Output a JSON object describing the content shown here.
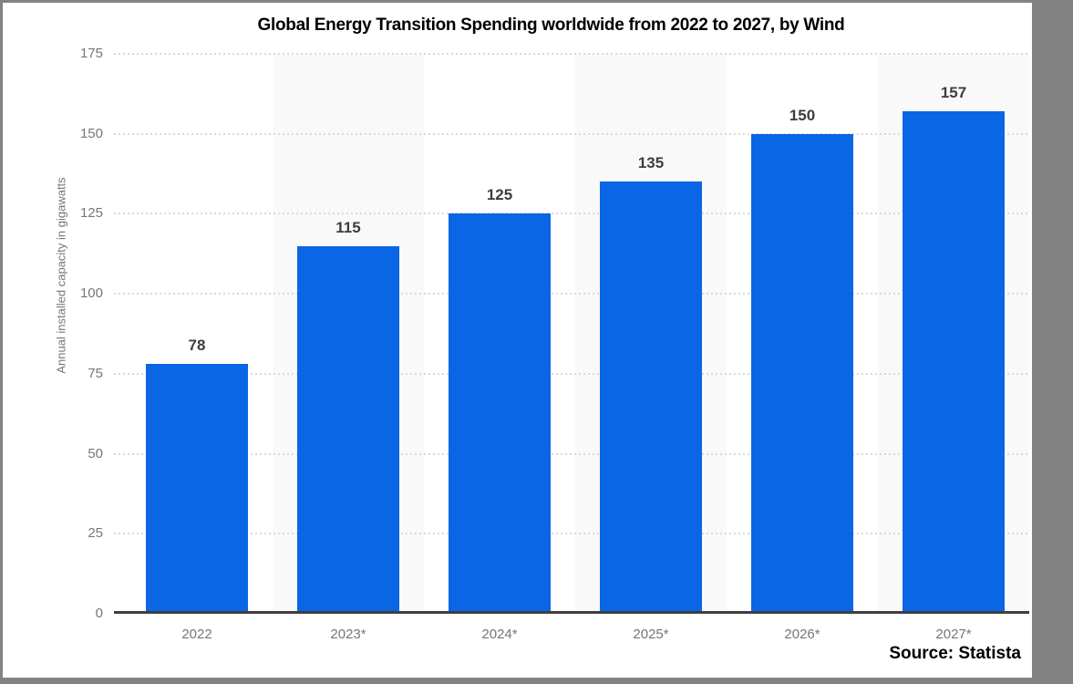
{
  "window": {
    "frame_color": "#828282",
    "panel_color": "#ffffff"
  },
  "chart_data": {
    "type": "bar",
    "title": "Global Energy Transition Spending worldwide from 2022 to 2027, by Wind",
    "ylabel": "Annual installed capacity in gigawatts",
    "xlabel": "",
    "source": "Source: Statista",
    "categories": [
      "2022",
      "2023*",
      "2024*",
      "2025*",
      "2026*",
      "2027*"
    ],
    "values": [
      78,
      115,
      125,
      135,
      150,
      157
    ],
    "y_ticks": [
      0,
      25,
      50,
      75,
      100,
      125,
      150,
      175
    ],
    "ylim": [
      0,
      175
    ],
    "grid": "horizontal dotted gridlines at every 25, solid dark baseline at 0",
    "legend": "none",
    "bar_color": "#0a66e4",
    "band_color": "#f9f9f9",
    "banded_columns": [
      1,
      3,
      5
    ],
    "gridline_color": "#d9d9d9",
    "axis_line_color": "#3f3f3f",
    "tick_label_color": "#75757d",
    "value_label_color": "#3d3d3d",
    "title_color": "#000000",
    "source_color": "#000000"
  }
}
